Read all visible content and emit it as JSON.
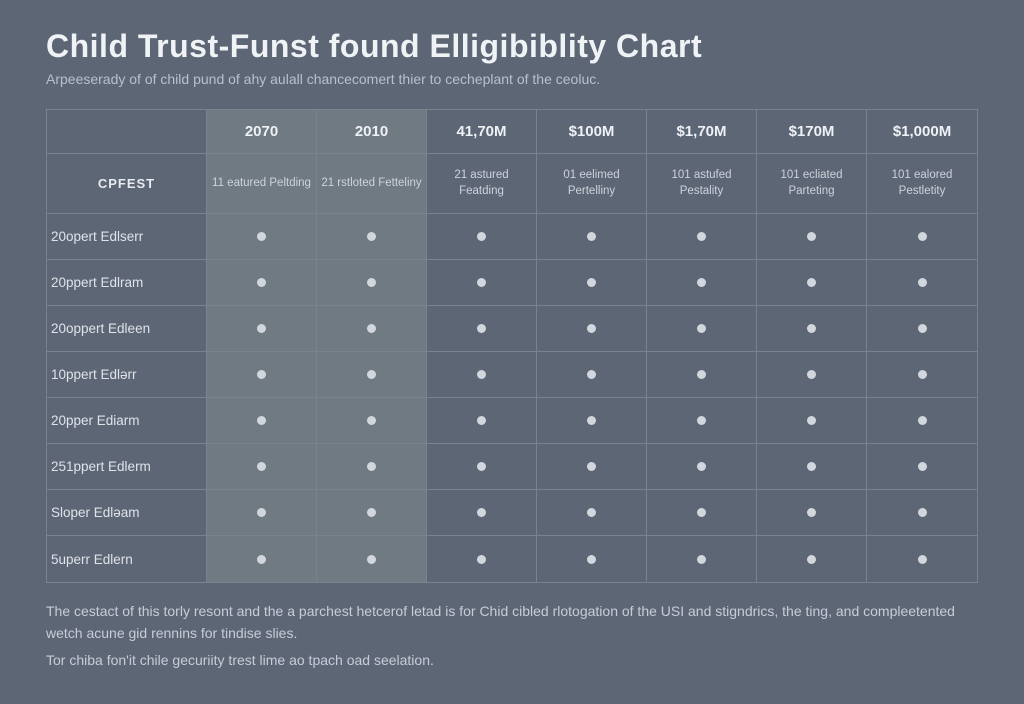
{
  "title": "Child Trust-Funst found Elligibiblity Chart",
  "subtitle": "Arpeeserady of of child pund of ahy aulall chancecomert thier to cecheplant of the ceoluc.",
  "table": {
    "corner_label": "CPFEST",
    "top_headers": [
      "2070",
      "2010",
      "41,70M",
      "$100M",
      "$1,70M",
      "$170M",
      "$1,000M"
    ],
    "sub_headers": [
      "11 eatured Peltding",
      "21 rstloted Fetteliny",
      "21 astured Featding",
      "01 eelimed Pertelliny",
      "101 astufed Pestality",
      "101 ecliated Parteting",
      "101 ealored Pestletity"
    ],
    "row_labels": [
      "20opert Edlserr",
      "20ppert Edlram",
      "20oppert Edleen",
      "10ppert Edlərr",
      "20pper Ediarm",
      "251ppert Edlerm",
      "Sloper Edləam",
      "5uperr Edlern"
    ],
    "alt_columns": [
      0,
      1
    ],
    "dot_color": "#d2d7de",
    "colors": {
      "background": "#5d6675",
      "alt_col_bg": "#6f7a82",
      "border": "#7a8290",
      "text_primary": "#e8ebef",
      "text_muted": "#b8c0cb"
    }
  },
  "footer": {
    "line1": "The cestact of this torly resont and the a parchest hetcerof letad is for Chid cibled rlotogation of the USI and stigndrics, the ting, and compleetented wetch acune gid rennins for tindise slies.",
    "line2": "Tor chiba fon'it chile gecuriity trest lime ao tpach oad seelation."
  }
}
